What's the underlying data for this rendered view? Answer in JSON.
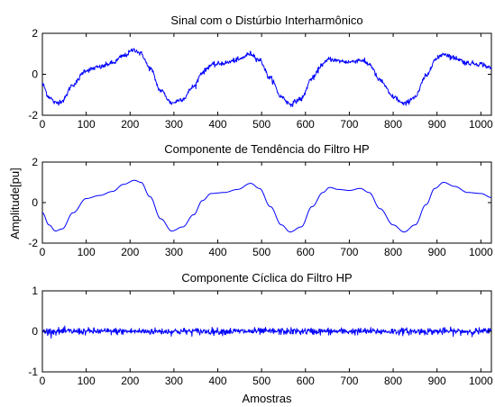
{
  "figure": {
    "ylabel": "Amplitude[pu]",
    "xlabel": "Amostras"
  },
  "chart_data": [
    {
      "type": "line",
      "title": "Sinal com o Distúrbio Interharmônico",
      "xlabel": "",
      "ylabel": "",
      "xlim": [
        0,
        1024
      ],
      "ylim": [
        -2,
        2
      ],
      "xticks": [
        0,
        100,
        200,
        300,
        400,
        500,
        600,
        700,
        800,
        900,
        1000
      ],
      "yticks": [
        -2,
        0,
        2
      ],
      "line_color": "#0000ff",
      "grid": false,
      "noise": 0.1,
      "points": [
        [
          0,
          -0.5
        ],
        [
          15,
          -1.1
        ],
        [
          30,
          -1.4
        ],
        [
          45,
          -1.3
        ],
        [
          70,
          -0.5
        ],
        [
          100,
          0.2
        ],
        [
          130,
          0.35
        ],
        [
          160,
          0.55
        ],
        [
          185,
          0.9
        ],
        [
          210,
          1.2
        ],
        [
          225,
          1.0
        ],
        [
          245,
          0.3
        ],
        [
          270,
          -0.8
        ],
        [
          295,
          -1.4
        ],
        [
          320,
          -1.2
        ],
        [
          345,
          -0.6
        ],
        [
          365,
          0.1
        ],
        [
          385,
          0.45
        ],
        [
          415,
          0.55
        ],
        [
          445,
          0.7
        ],
        [
          475,
          1.0
        ],
        [
          495,
          0.7
        ],
        [
          520,
          -0.2
        ],
        [
          545,
          -1.1
        ],
        [
          565,
          -1.45
        ],
        [
          590,
          -1.2
        ],
        [
          615,
          -0.2
        ],
        [
          640,
          0.5
        ],
        [
          655,
          0.75
        ],
        [
          675,
          0.65
        ],
        [
          700,
          0.6
        ],
        [
          725,
          0.7
        ],
        [
          745,
          0.5
        ],
        [
          770,
          -0.3
        ],
        [
          800,
          -1.1
        ],
        [
          825,
          -1.45
        ],
        [
          850,
          -1.1
        ],
        [
          875,
          -0.1
        ],
        [
          895,
          0.7
        ],
        [
          915,
          1.0
        ],
        [
          940,
          0.8
        ],
        [
          970,
          0.55
        ],
        [
          1000,
          0.5
        ],
        [
          1024,
          0.3
        ]
      ]
    },
    {
      "type": "line",
      "title": "Componente de Tendência do Filtro HP",
      "xlabel": "",
      "ylabel": "",
      "xlim": [
        0,
        1024
      ],
      "ylim": [
        -2,
        2
      ],
      "xticks": [
        0,
        100,
        200,
        300,
        400,
        500,
        600,
        700,
        800,
        900,
        1000
      ],
      "yticks": [
        -2,
        0,
        2
      ],
      "line_color": "#0000ff",
      "grid": false,
      "noise": 0,
      "points": [
        [
          0,
          -0.5
        ],
        [
          15,
          -1.1
        ],
        [
          30,
          -1.4
        ],
        [
          45,
          -1.3
        ],
        [
          70,
          -0.5
        ],
        [
          100,
          0.2
        ],
        [
          130,
          0.35
        ],
        [
          160,
          0.55
        ],
        [
          185,
          0.9
        ],
        [
          210,
          1.1
        ],
        [
          225,
          1.0
        ],
        [
          245,
          0.3
        ],
        [
          270,
          -0.8
        ],
        [
          295,
          -1.4
        ],
        [
          320,
          -1.2
        ],
        [
          345,
          -0.6
        ],
        [
          365,
          0.1
        ],
        [
          385,
          0.45
        ],
        [
          415,
          0.5
        ],
        [
          445,
          0.65
        ],
        [
          475,
          0.95
        ],
        [
          495,
          0.7
        ],
        [
          520,
          -0.2
        ],
        [
          545,
          -1.1
        ],
        [
          565,
          -1.45
        ],
        [
          590,
          -1.2
        ],
        [
          615,
          -0.2
        ],
        [
          640,
          0.5
        ],
        [
          655,
          0.75
        ],
        [
          675,
          0.65
        ],
        [
          700,
          0.6
        ],
        [
          725,
          0.7
        ],
        [
          745,
          0.5
        ],
        [
          770,
          -0.3
        ],
        [
          800,
          -1.1
        ],
        [
          825,
          -1.45
        ],
        [
          850,
          -1.1
        ],
        [
          875,
          -0.1
        ],
        [
          895,
          0.7
        ],
        [
          915,
          1.0
        ],
        [
          940,
          0.8
        ],
        [
          970,
          0.5
        ],
        [
          1000,
          0.45
        ],
        [
          1024,
          0.25
        ]
      ]
    },
    {
      "type": "line",
      "title": "Componente Cíclica do Filtro HP",
      "xlabel": "",
      "ylabel": "",
      "xlim": [
        0,
        1024
      ],
      "ylim": [
        -1,
        1
      ],
      "xticks": [
        0,
        100,
        200,
        300,
        400,
        500,
        600,
        700,
        800,
        900,
        1000
      ],
      "yticks": [
        -1,
        0,
        1
      ],
      "line_color": "#0000ff",
      "grid": false,
      "noise": 0.07,
      "points": [
        [
          0,
          0
        ],
        [
          1024,
          0
        ]
      ]
    }
  ]
}
